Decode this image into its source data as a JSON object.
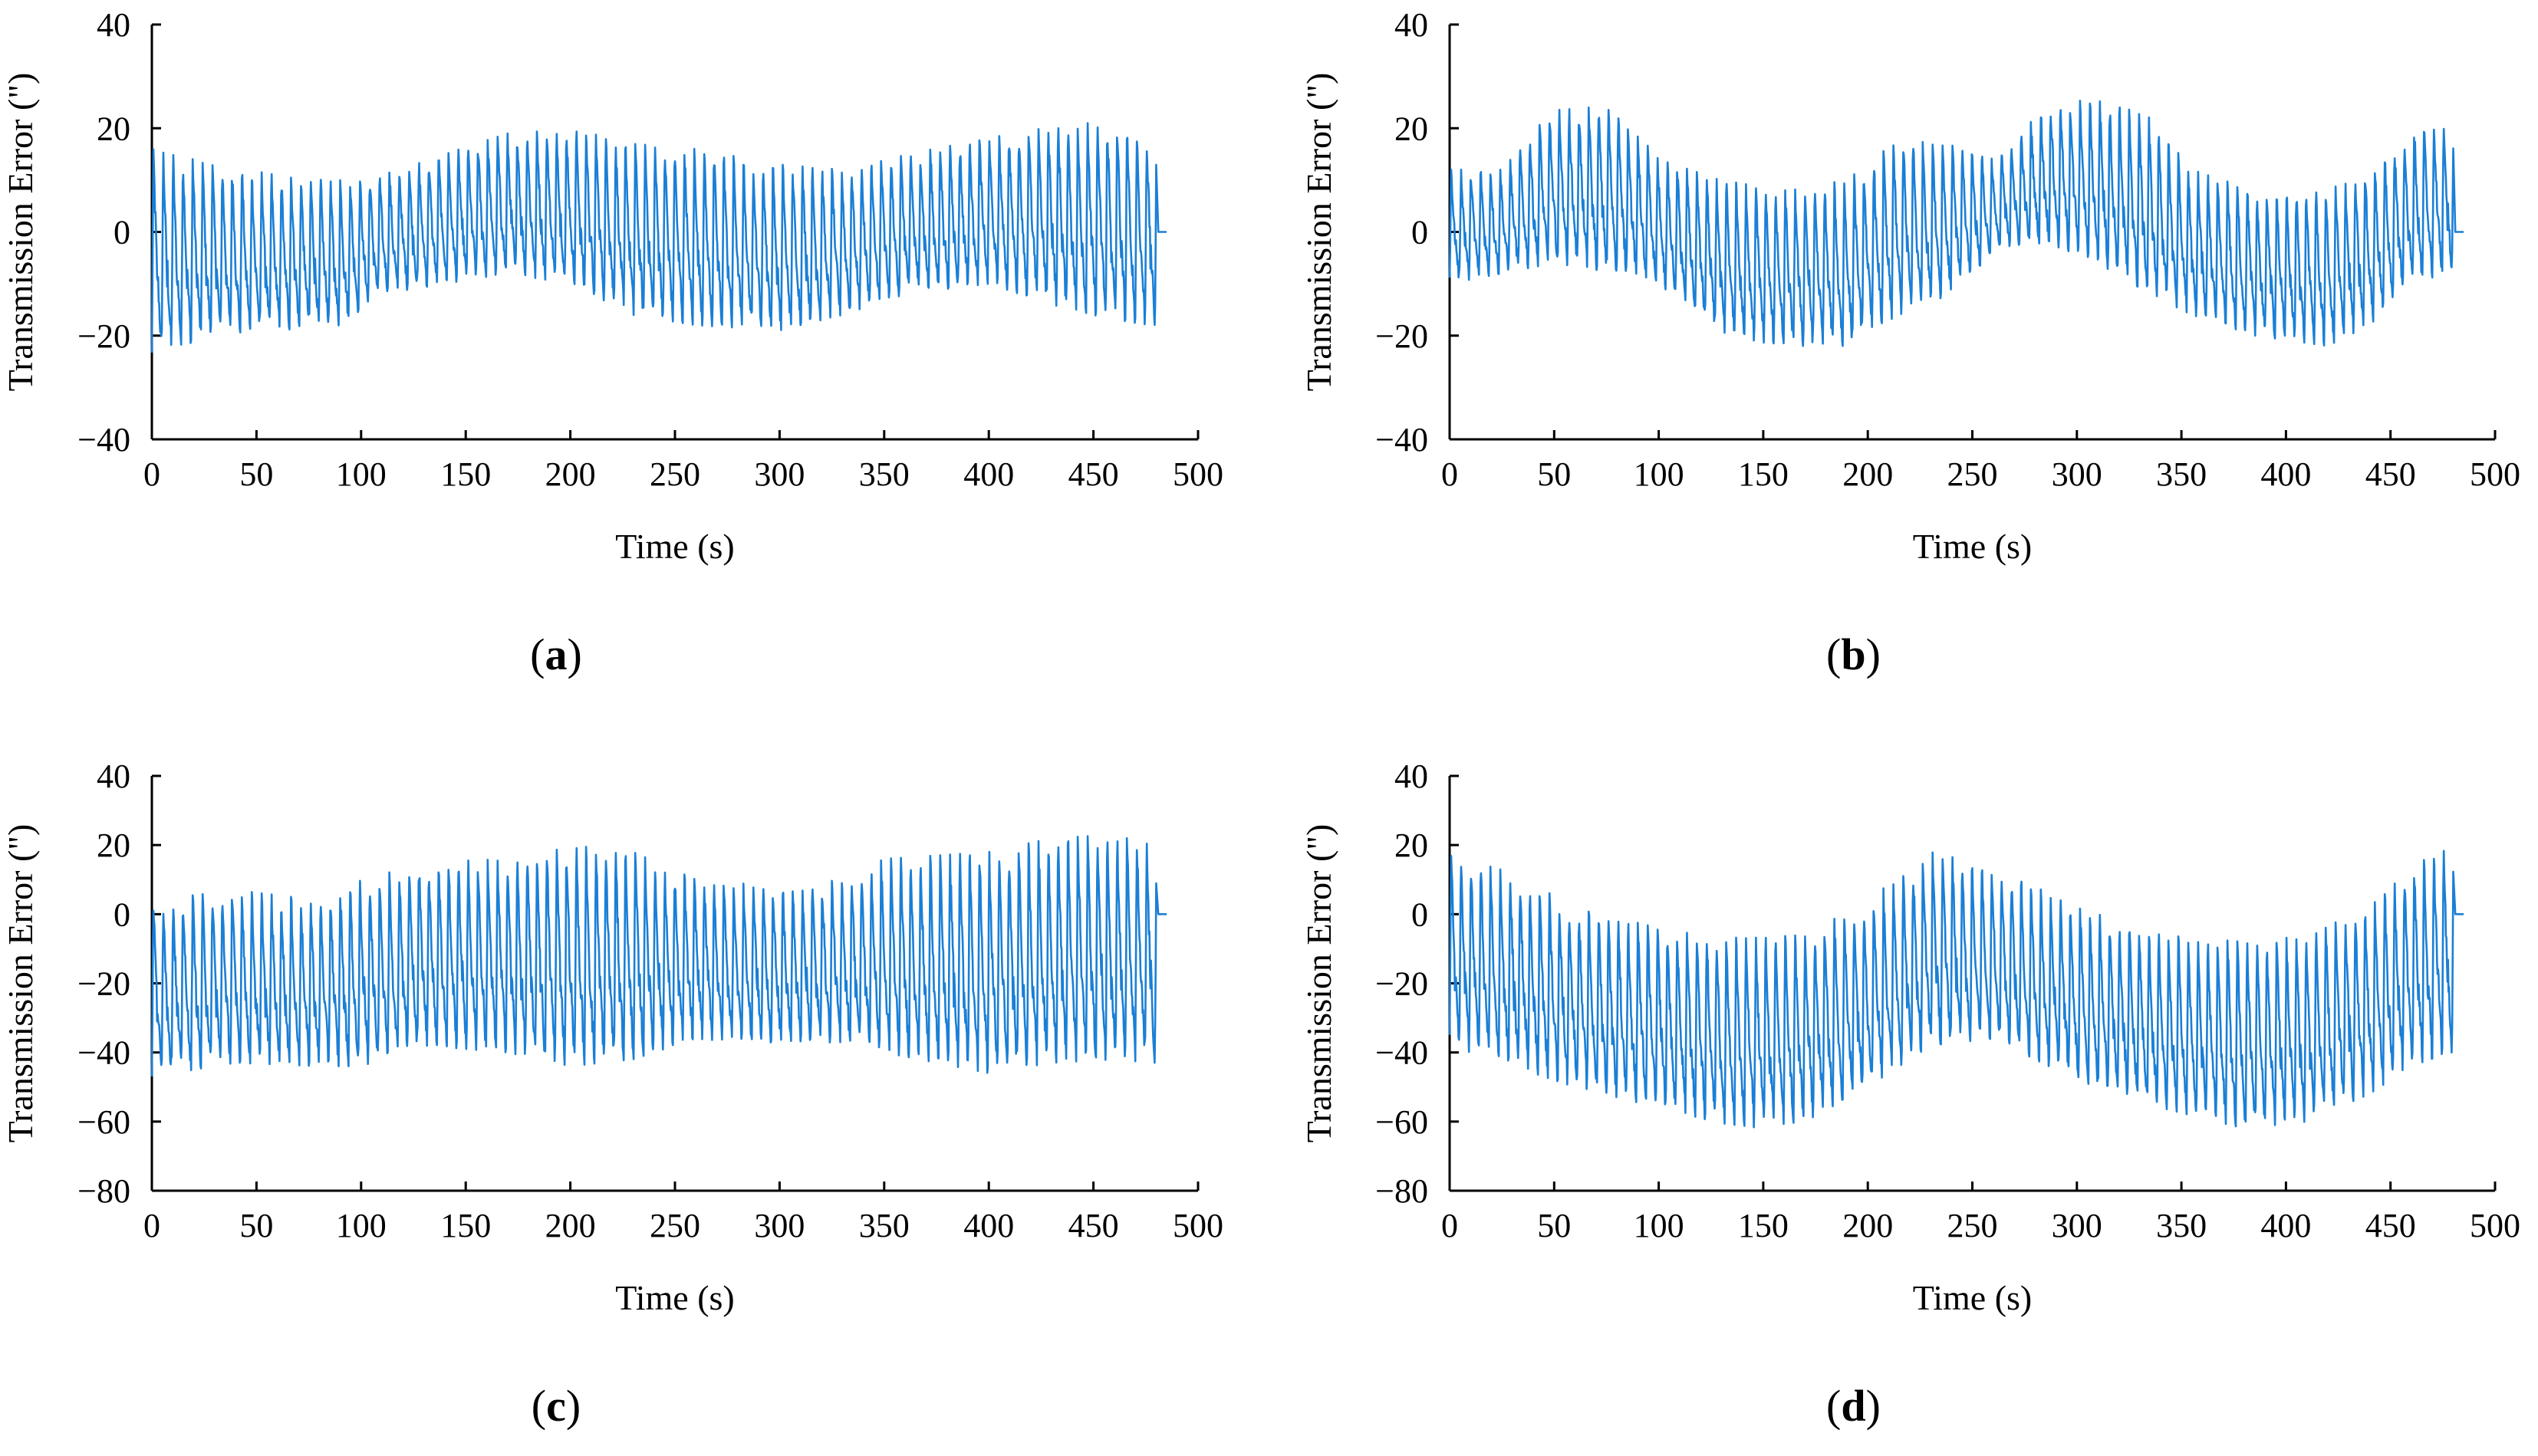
{
  "figure": {
    "panels": [
      "(a)",
      "(b)",
      "(c)",
      "(d)"
    ]
  },
  "chart_data": [
    {
      "type": "line",
      "panel": "(a)",
      "panel_letter": "a",
      "xlabel": "Time (s)",
      "ylabel": "Transmission Error  (\")",
      "xlim": [
        0,
        500
      ],
      "ylim": [
        -40,
        40
      ],
      "xticks": [
        0,
        50,
        100,
        150,
        200,
        250,
        300,
        350,
        400,
        450,
        500
      ],
      "yticks": [
        -40,
        -20,
        0,
        20,
        40
      ],
      "series": [
        {
          "name": "Transmission Error",
          "color": "#1a7fd6",
          "t_end": 480,
          "period": 4.7,
          "envelope": [
            [
              0,
              16,
              -24
            ],
            [
              30,
              13,
              -20
            ],
            [
              60,
              11,
              -19
            ],
            [
              90,
              10,
              -18
            ],
            [
              110,
              11,
              -12
            ],
            [
              140,
              15,
              -10
            ],
            [
              170,
              19,
              -8
            ],
            [
              200,
              20,
              -10
            ],
            [
              230,
              17,
              -16
            ],
            [
              260,
              16,
              -18
            ],
            [
              300,
              13,
              -19
            ],
            [
              330,
              12,
              -16
            ],
            [
              360,
              15,
              -12
            ],
            [
              400,
              18,
              -10
            ],
            [
              430,
              21,
              -14
            ],
            [
              460,
              21,
              -17
            ],
            [
              478,
              18,
              -18
            ]
          ]
        }
      ]
    },
    {
      "type": "line",
      "panel": "(b)",
      "panel_letter": "b",
      "xlabel": "Time (s)",
      "ylabel": "Transmission Error  (\")",
      "xlim": [
        0,
        500
      ],
      "ylim": [
        -40,
        40
      ],
      "xticks": [
        0,
        50,
        100,
        150,
        200,
        250,
        300,
        350,
        400,
        450,
        500
      ],
      "yticks": [
        -40,
        -20,
        0,
        20,
        40
      ],
      "series": [
        {
          "name": "Transmission Error",
          "color": "#1a7fd6",
          "t_end": 480,
          "period": 4.7,
          "envelope": [
            [
              0,
              12,
              -10
            ],
            [
              25,
              12,
              -8
            ],
            [
              50,
              24,
              -6
            ],
            [
              80,
              24,
              -8
            ],
            [
              100,
              14,
              -10
            ],
            [
              130,
              10,
              -20
            ],
            [
              160,
              8,
              -22
            ],
            [
              190,
              10,
              -22
            ],
            [
              215,
              18,
              -16
            ],
            [
              240,
              18,
              -12
            ],
            [
              260,
              14,
              -4
            ],
            [
              285,
              24,
              -2
            ],
            [
              310,
              26,
              -6
            ],
            [
              335,
              22,
              -12
            ],
            [
              355,
              12,
              -16
            ],
            [
              385,
              8,
              -20
            ],
            [
              420,
              8,
              -22
            ],
            [
              440,
              12,
              -18
            ],
            [
              460,
              20,
              -10
            ],
            [
              478,
              22,
              -8
            ]
          ]
        }
      ]
    },
    {
      "type": "line",
      "panel": "(c)",
      "panel_letter": "c",
      "xlabel": "Time (s)",
      "ylabel": "Transmission Error  (\")",
      "xlim": [
        0,
        500
      ],
      "ylim": [
        -80,
        40
      ],
      "xticks": [
        0,
        50,
        100,
        150,
        200,
        250,
        300,
        350,
        400,
        450,
        500
      ],
      "yticks": [
        -80,
        -60,
        -40,
        -20,
        0,
        20,
        40
      ],
      "series": [
        {
          "name": "Transmission Error",
          "color": "#1a7fd6",
          "t_end": 480,
          "period": 4.7,
          "envelope": [
            [
              0,
              4,
              -47
            ],
            [
              40,
              7,
              -43
            ],
            [
              80,
              4,
              -44
            ],
            [
              100,
              10,
              -44
            ],
            [
              130,
              15,
              -38
            ],
            [
              170,
              16,
              -40
            ],
            [
              200,
              20,
              -44
            ],
            [
              230,
              18,
              -42
            ],
            [
              260,
              10,
              -36
            ],
            [
              300,
              8,
              -38
            ],
            [
              330,
              10,
              -37
            ],
            [
              350,
              16,
              -40
            ],
            [
              400,
              18,
              -46
            ],
            [
              430,
              22,
              -43
            ],
            [
              460,
              23,
              -42
            ],
            [
              478,
              20,
              -43
            ]
          ]
        }
      ]
    },
    {
      "type": "line",
      "panel": "(d)",
      "panel_letter": "d",
      "xlabel": "Time (s)",
      "ylabel": "Transmission Error  (\")",
      "xlim": [
        0,
        500
      ],
      "ylim": [
        -80,
        40
      ],
      "xticks": [
        0,
        50,
        100,
        150,
        200,
        250,
        300,
        350,
        400,
        450,
        500
      ],
      "yticks": [
        -80,
        -60,
        -40,
        -20,
        0,
        20,
        40
      ],
      "series": [
        {
          "name": "Transmission Error",
          "color": "#1a7fd6",
          "t_end": 480,
          "period": 4.7,
          "envelope": [
            [
              0,
              17,
              -38
            ],
            [
              30,
              12,
              -44
            ],
            [
              60,
              2,
              -50
            ],
            [
              100,
              -4,
              -56
            ],
            [
              140,
              -7,
              -62
            ],
            [
              170,
              -6,
              -60
            ],
            [
              200,
              4,
              -50
            ],
            [
              230,
              18,
              -38
            ],
            [
              260,
              14,
              -36
            ],
            [
              300,
              2,
              -48
            ],
            [
              340,
              -6,
              -56
            ],
            [
              380,
              -8,
              -62
            ],
            [
              410,
              -6,
              -60
            ],
            [
              440,
              2,
              -52
            ],
            [
              460,
              14,
              -44
            ],
            [
              478,
              19,
              -40
            ]
          ]
        }
      ]
    }
  ]
}
